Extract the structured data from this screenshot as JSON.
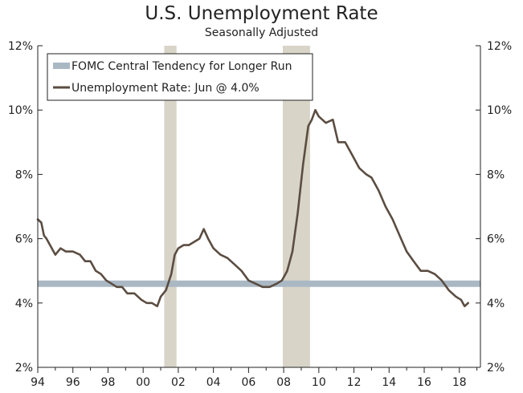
{
  "chart_data": {
    "type": "line",
    "title": "U.S. Unemployment Rate",
    "subtitle": "Seasonally Adjusted",
    "xlabel": "",
    "ylabel": "",
    "xlim": [
      1994.0,
      2019.2
    ],
    "ylim": [
      2,
      12
    ],
    "y_ticks": [
      2,
      4,
      6,
      8,
      10,
      12
    ],
    "y_tick_labels": [
      "2%",
      "4%",
      "6%",
      "8%",
      "10%",
      "12%"
    ],
    "x_ticks": [
      1994,
      1996,
      1998,
      2000,
      2002,
      2004,
      2006,
      2008,
      2010,
      2012,
      2014,
      2016,
      2018
    ],
    "x_tick_labels": [
      "94",
      "96",
      "98",
      "00",
      "02",
      "04",
      "06",
      "08",
      "10",
      "12",
      "14",
      "16",
      "18"
    ],
    "recessions": [
      {
        "start": 2001.2,
        "end": 2001.9
      },
      {
        "start": 2007.95,
        "end": 2009.5
      }
    ],
    "reference_band": {
      "name": "FOMC Central Tendency for Longer Run",
      "value": 4.6
    },
    "series": [
      {
        "name": "Unemployment Rate: Jun @ 4.0%",
        "x": [
          1994.0,
          1994.2,
          1994.35,
          1994.5,
          1994.7,
          1994.9,
          1995.0,
          1995.3,
          1995.6,
          1996.0,
          1996.4,
          1996.7,
          1997.0,
          1997.3,
          1997.6,
          1997.9,
          1998.2,
          1998.5,
          1998.8,
          1999.1,
          1999.5,
          1999.9,
          2000.2,
          2000.5,
          2000.8,
          2001.0,
          2001.3,
          2001.6,
          2001.8,
          2002.0,
          2002.3,
          2002.6,
          2002.9,
          2003.2,
          2003.45,
          2003.7,
          2004.0,
          2004.4,
          2004.8,
          2005.2,
          2005.6,
          2006.0,
          2006.4,
          2006.8,
          2007.2,
          2007.6,
          2007.9,
          2008.2,
          2008.5,
          2008.8,
          2009.1,
          2009.4,
          2009.6,
          2009.8,
          2010.0,
          2010.4,
          2010.8,
          2011.1,
          2011.5,
          2011.9,
          2012.3,
          2012.7,
          2013.0,
          2013.4,
          2013.8,
          2014.2,
          2014.6,
          2015.0,
          2015.4,
          2015.8,
          2016.2,
          2016.6,
          2017.0,
          2017.4,
          2017.8,
          2018.1,
          2018.3,
          2018.5
        ],
        "values": [
          6.6,
          6.5,
          6.1,
          6.0,
          5.8,
          5.6,
          5.5,
          5.7,
          5.6,
          5.6,
          5.5,
          5.3,
          5.3,
          5.0,
          4.9,
          4.7,
          4.6,
          4.5,
          4.5,
          4.3,
          4.3,
          4.1,
          4.0,
          4.0,
          3.9,
          4.2,
          4.4,
          4.9,
          5.5,
          5.7,
          5.8,
          5.8,
          5.9,
          6.0,
          6.3,
          6.0,
          5.7,
          5.5,
          5.4,
          5.2,
          5.0,
          4.7,
          4.6,
          4.5,
          4.5,
          4.6,
          4.7,
          5.0,
          5.6,
          6.8,
          8.3,
          9.5,
          9.7,
          10.0,
          9.8,
          9.6,
          9.7,
          9.0,
          9.0,
          8.6,
          8.2,
          8.0,
          7.9,
          7.5,
          7.0,
          6.6,
          6.1,
          5.6,
          5.3,
          5.0,
          5.0,
          4.9,
          4.7,
          4.4,
          4.2,
          4.1,
          3.9,
          4.0
        ]
      }
    ],
    "legend_position": "top-left",
    "colors": {
      "line": "#5b4d42",
      "band": "#aab8c4",
      "recession": "#d9d4c8",
      "axis": "#222222"
    }
  }
}
